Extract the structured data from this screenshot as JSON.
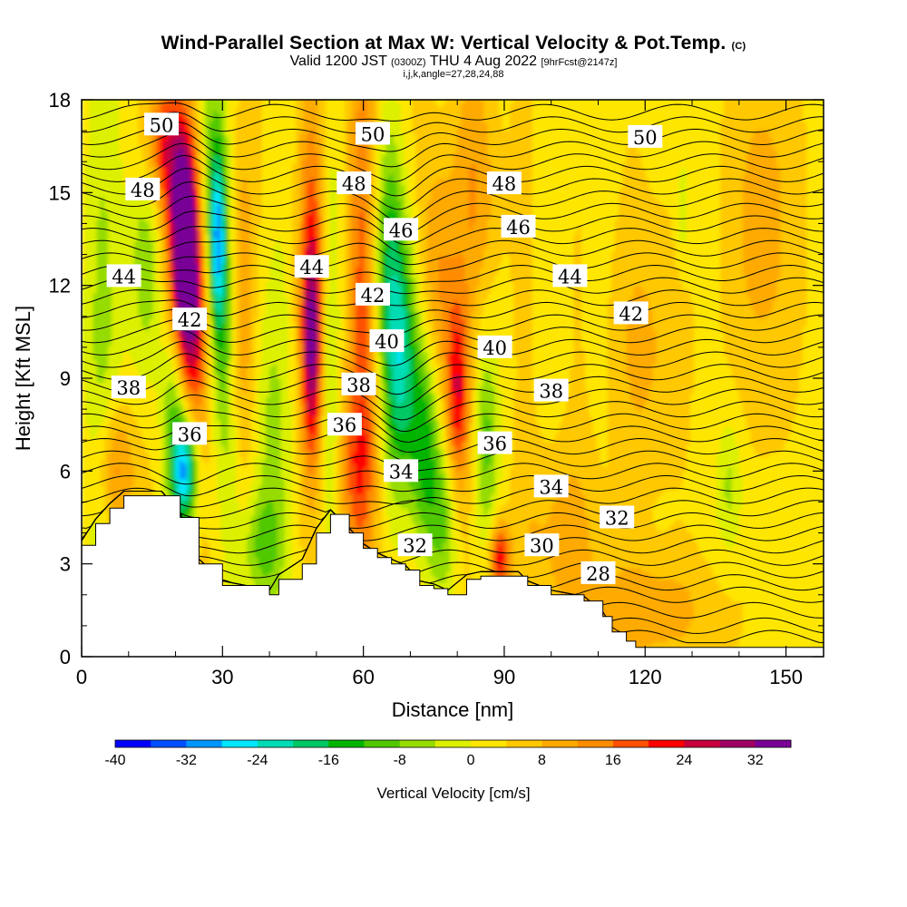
{
  "title": {
    "main": "Wind-Parallel Section at Max W: Vertical Velocity & Pot.Temp.",
    "mark": "(C)",
    "valid_pre": "Valid 1200 JST",
    "valid_utc": "(0300Z)",
    "valid_post": "THU 4 Aug 2022",
    "fcst": "[9hrFcst@2147z]",
    "indices": "i,j,k,angle=27,28,24,88"
  },
  "chart_data": {
    "type": "heatmap",
    "xlabel": "Distance [nm]",
    "ylabel": "Height [Kft MSL]",
    "xlim": [
      0,
      158
    ],
    "ylim": [
      0,
      18
    ],
    "x_ticks": [
      "0",
      "30",
      "60",
      "90",
      "120",
      "150"
    ],
    "y_ticks": [
      "0",
      "3",
      "6",
      "9",
      "12",
      "15",
      "18"
    ],
    "colorbar": {
      "label": "Vertical Velocity [cm/s]",
      "tick_labels": [
        "-40",
        "-32",
        "-24",
        "-16",
        "-8",
        "0",
        "8",
        "16",
        "24",
        "32"
      ],
      "levels": [
        -40,
        -36,
        -32,
        -28,
        -24,
        -20,
        -16,
        -12,
        -8,
        -4,
        0,
        4,
        8,
        12,
        16,
        20,
        24,
        28,
        32,
        36
      ],
      "colors": [
        "#0000ff",
        "#0050ff",
        "#0096ff",
        "#00e6ff",
        "#00dcb4",
        "#00c864",
        "#00b400",
        "#50c800",
        "#96dc00",
        "#dcf000",
        "#ffe600",
        "#ffc800",
        "#ffaa00",
        "#ff8c00",
        "#ff5000",
        "#ff0000",
        "#c8003c",
        "#a00064",
        "#780096"
      ]
    },
    "velocity_features": [
      {
        "kind": "updraft",
        "x_nm": 22,
        "z_kft": 13.5,
        "peak_cms": 34
      },
      {
        "kind": "updraft",
        "x_nm": 23,
        "z_kft": 9.5,
        "peak_cms": 24
      },
      {
        "kind": "updraft",
        "x_nm": 7,
        "z_kft": 6,
        "peak_cms": 18
      },
      {
        "kind": "updraft",
        "x_nm": 49,
        "z_kft": 9.5,
        "peak_cms": 24
      },
      {
        "kind": "updraft",
        "x_nm": 80,
        "z_kft": 8.5,
        "peak_cms": 22
      },
      {
        "kind": "updraft",
        "x_nm": 89,
        "z_kft": 3.2,
        "peak_cms": 24
      },
      {
        "kind": "downdraft",
        "x_nm": 23,
        "z_kft": 5.5,
        "peak_cms": -30
      },
      {
        "kind": "downdraft",
        "x_nm": 30,
        "z_kft": 13,
        "peak_cms": -24
      },
      {
        "kind": "downdraft",
        "x_nm": 70,
        "z_kft": 9,
        "peak_cms": -24
      }
    ],
    "theta_contours": {
      "levels": [
        28,
        30,
        32,
        34,
        36,
        38,
        40,
        42,
        44,
        46,
        48,
        50
      ],
      "labels": [
        {
          "text": "50",
          "x_nm": 17,
          "z_kft": 17.2
        },
        {
          "text": "50",
          "x_nm": 62,
          "z_kft": 16.9
        },
        {
          "text": "50",
          "x_nm": 120,
          "z_kft": 16.8
        },
        {
          "text": "48",
          "x_nm": 13,
          "z_kft": 15.1
        },
        {
          "text": "48",
          "x_nm": 58,
          "z_kft": 15.3
        },
        {
          "text": "48",
          "x_nm": 90,
          "z_kft": 15.3
        },
        {
          "text": "46",
          "x_nm": 68,
          "z_kft": 13.8
        },
        {
          "text": "46",
          "x_nm": 93,
          "z_kft": 13.9
        },
        {
          "text": "44",
          "x_nm": 9,
          "z_kft": 12.3
        },
        {
          "text": "44",
          "x_nm": 49,
          "z_kft": 12.6
        },
        {
          "text": "44",
          "x_nm": 104,
          "z_kft": 12.3
        },
        {
          "text": "42",
          "x_nm": 23,
          "z_kft": 10.9
        },
        {
          "text": "42",
          "x_nm": 62,
          "z_kft": 11.7
        },
        {
          "text": "42",
          "x_nm": 117,
          "z_kft": 11.1
        },
        {
          "text": "40",
          "x_nm": 65,
          "z_kft": 10.2
        },
        {
          "text": "40",
          "x_nm": 88,
          "z_kft": 10.0
        },
        {
          "text": "38",
          "x_nm": 10,
          "z_kft": 8.7
        },
        {
          "text": "38",
          "x_nm": 59,
          "z_kft": 8.8
        },
        {
          "text": "38",
          "x_nm": 100,
          "z_kft": 8.6
        },
        {
          "text": "36",
          "x_nm": 23,
          "z_kft": 7.2
        },
        {
          "text": "36",
          "x_nm": 56,
          "z_kft": 7.5
        },
        {
          "text": "36",
          "x_nm": 88,
          "z_kft": 6.9
        },
        {
          "text": "34",
          "x_nm": 68,
          "z_kft": 6.0
        },
        {
          "text": "34",
          "x_nm": 100,
          "z_kft": 5.5
        },
        {
          "text": "32",
          "x_nm": 71,
          "z_kft": 3.6
        },
        {
          "text": "32",
          "x_nm": 114,
          "z_kft": 4.5
        },
        {
          "text": "30",
          "x_nm": 98,
          "z_kft": 3.6
        },
        {
          "text": "28",
          "x_nm": 110,
          "z_kft": 2.7
        }
      ]
    },
    "terrain_kft": [
      [
        0,
        3.6
      ],
      [
        3,
        4.3
      ],
      [
        6,
        4.8
      ],
      [
        9,
        5.2
      ],
      [
        17,
        5.2
      ],
      [
        21,
        4.5
      ],
      [
        25,
        3.0
      ],
      [
        30,
        2.3
      ],
      [
        40,
        2.0
      ],
      [
        42,
        2.5
      ],
      [
        47,
        3.0
      ],
      [
        50,
        4.0
      ],
      [
        53,
        4.6
      ],
      [
        57,
        4.0
      ],
      [
        60,
        3.5
      ],
      [
        63,
        3.2
      ],
      [
        66,
        3.0
      ],
      [
        69,
        2.8
      ],
      [
        72,
        2.3
      ],
      [
        75,
        2.2
      ],
      [
        78,
        2.0
      ],
      [
        82,
        2.5
      ],
      [
        85,
        2.6
      ],
      [
        93,
        2.6
      ],
      [
        95,
        2.3
      ],
      [
        100,
        2.0
      ],
      [
        107,
        1.8
      ],
      [
        111,
        1.3
      ],
      [
        113,
        0.8
      ],
      [
        116,
        0.5
      ],
      [
        118,
        0.3
      ],
      [
        158,
        0.3
      ]
    ]
  }
}
